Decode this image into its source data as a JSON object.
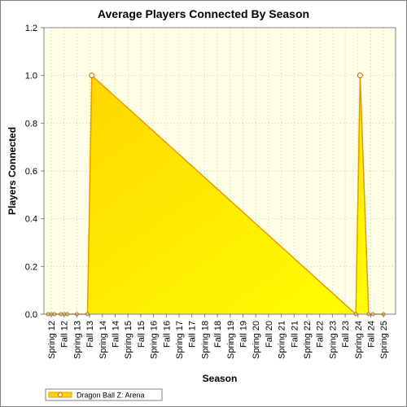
{
  "chart_data": {
    "type": "area",
    "title": "Average Players Connected By Season",
    "xlabel": "Season",
    "ylabel": "Players Connected",
    "categories": [
      "Spring 12",
      "Fall 12",
      "Spring 13",
      "Fall 13",
      "Spring 14",
      "Fall 14",
      "Spring 15",
      "Fall 15",
      "Spring 16",
      "Fall 16",
      "Spring 17",
      "Fall 17",
      "Spring 18",
      "Fall 18",
      "Spring 19",
      "Fall 19",
      "Spring 20",
      "Fall 20",
      "Spring 21",
      "Fall 21",
      "Spring 22",
      "Fall 22",
      "Spring 23",
      "Fall 23",
      "Spring 24",
      "Fall 24",
      "Spring 25"
    ],
    "series": [
      {
        "name": "Dragon Ball Z: Arena",
        "points": [
          {
            "x": "Spring 12",
            "y": 0
          },
          {
            "x": "Spring 12",
            "y": 0
          },
          {
            "x": "Spring 12",
            "y": 0
          },
          {
            "x": "Fall 12",
            "y": 0
          },
          {
            "x": "Fall 12",
            "y": 0
          },
          {
            "x": "Fall 12",
            "y": 0
          },
          {
            "x": "Spring 13",
            "y": 0
          },
          {
            "x": "Fall 13",
            "y": 0
          },
          {
            "x": "Fall 13",
            "y": 1.0
          },
          {
            "x": "Spring 24",
            "y": 0
          },
          {
            "x": "Spring 24",
            "y": 1.0
          },
          {
            "x": "Fall 24",
            "y": 0
          },
          {
            "x": "Fall 24",
            "y": 0
          },
          {
            "x": "Spring 25",
            "y": 0
          }
        ]
      }
    ],
    "ylim": [
      0,
      1.2
    ],
    "yticks": [
      "0.0",
      "0.2",
      "0.4",
      "0.6",
      "0.8",
      "1.0",
      "1.2"
    ],
    "grid": true,
    "legend": "bottom-left",
    "colors": {
      "fill_top": "#ffd400",
      "fill_bottom": "#ffff00",
      "line": "#e89a00",
      "marker_fill": "#fffbe0",
      "marker_stroke": "#c07000",
      "plot_bg": "#ffffe8",
      "grid": "#c8c8a0"
    }
  }
}
